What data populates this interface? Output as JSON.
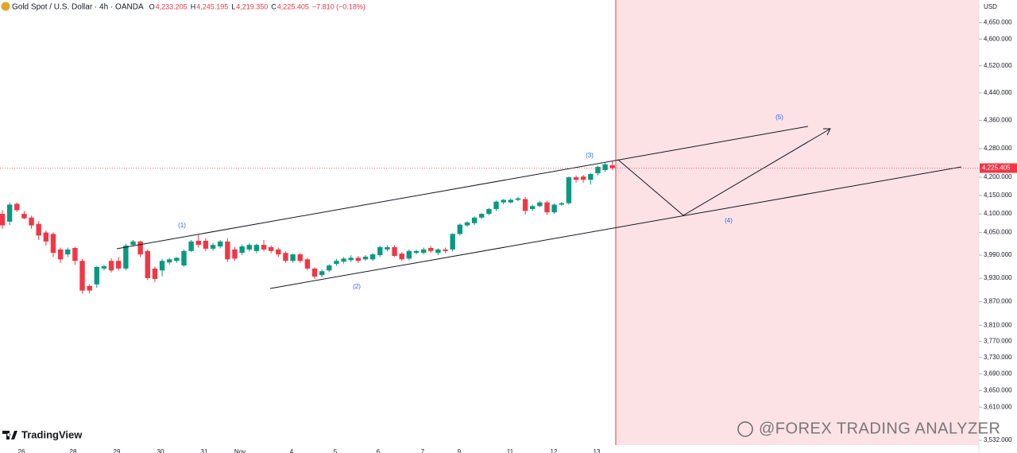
{
  "chart_data": {
    "type": "candlestick",
    "title": "Gold Spot / U.S. Dollar · 4h · OANDA",
    "ohlc_header": [
      {
        "key": "O",
        "label": "4,233.205"
      },
      {
        "key": "H",
        "label": "4,245.195"
      },
      {
        "key": "L",
        "label": "4,219.350"
      },
      {
        "key": "C",
        "label": "4,225.405"
      }
    ],
    "change": "−7.810 (−0.18%)",
    "currency": "USD",
    "log_scale": true,
    "up_color": "#089981",
    "down_color": "#f23645",
    "ylim": [
      3521,
      4720
    ],
    "yticks": [
      {
        "value": 4650,
        "label": "4,650.000"
      },
      {
        "value": 4600,
        "label": "4,600.000"
      },
      {
        "value": 4520,
        "label": "4,520.000"
      },
      {
        "value": 4440,
        "label": "4,440.000"
      },
      {
        "value": 4360,
        "label": "4,360.000"
      },
      {
        "value": 4280,
        "label": "4,280.000"
      },
      {
        "value": 4200,
        "label": "4,200.000"
      },
      {
        "value": 4150,
        "label": "4,150.000"
      },
      {
        "value": 4100,
        "label": "4,100.000"
      },
      {
        "value": 4050,
        "label": "4,050.000"
      },
      {
        "value": 3990,
        "label": "3,990.000"
      },
      {
        "value": 3930,
        "label": "3,930.000"
      },
      {
        "value": 3870,
        "label": "3,870.000"
      },
      {
        "value": 3810,
        "label": "3,810.000"
      },
      {
        "value": 3770,
        "label": "3,770.000"
      },
      {
        "value": 3730,
        "label": "3,730.000"
      },
      {
        "value": 3690,
        "label": "3,690.000"
      },
      {
        "value": 3650,
        "label": "3,650.000"
      },
      {
        "value": 3610,
        "label": "3,610.000"
      },
      {
        "value": 3532,
        "label": "3,532.000"
      }
    ],
    "last_price": {
      "value": 4225.405,
      "label": "4,225.405"
    },
    "x_labels": [
      "26",
      "28",
      "29",
      "30",
      "31",
      "Nov",
      "4",
      "5",
      "6",
      "7",
      "9",
      "11",
      "12",
      "13"
    ],
    "ohlc": [
      [
        4100,
        4110,
        4060,
        4069
      ],
      [
        4079,
        4131,
        4070,
        4125
      ],
      [
        4127,
        4131,
        4105,
        4110
      ],
      [
        4100,
        4108,
        4085,
        4088
      ],
      [
        4090,
        4095,
        4060,
        4069
      ],
      [
        4073,
        4080,
        4030,
        4042
      ],
      [
        4050,
        4055,
        4015,
        4026
      ],
      [
        4046,
        4050,
        3985,
        3996
      ],
      [
        4005,
        4010,
        3970,
        3979
      ],
      [
        3992,
        4010,
        3985,
        4005
      ],
      [
        4009,
        4012,
        3965,
        3975
      ],
      [
        3975,
        3980,
        3890,
        3898
      ],
      [
        3910,
        3914,
        3890,
        3898
      ],
      [
        3914,
        3962,
        3905,
        3959
      ],
      [
        3955,
        3965,
        3950,
        3961
      ],
      [
        3975,
        3982,
        3945,
        3950
      ],
      [
        3975,
        3985,
        3950,
        3955
      ],
      [
        3955,
        4020,
        3950,
        4015
      ],
      [
        4017,
        4030,
        4015,
        4026
      ],
      [
        4026,
        4028,
        3985,
        3992
      ],
      [
        4001,
        4005,
        3925,
        3930
      ],
      [
        3955,
        3960,
        3920,
        3928
      ],
      [
        3950,
        3980,
        3935,
        3975
      ],
      [
        3971,
        3983,
        3965,
        3979
      ],
      [
        3975,
        3985,
        3970,
        3983
      ],
      [
        3963,
        4005,
        3960,
        4001
      ],
      [
        4001,
        4030,
        3998,
        4026
      ],
      [
        4028,
        4045,
        4010,
        4017
      ],
      [
        4028,
        4035,
        4000,
        4007
      ],
      [
        4007,
        4022,
        4002,
        4017
      ],
      [
        4013,
        4030,
        4008,
        4026
      ],
      [
        4026,
        4035,
        3972,
        3979
      ],
      [
        4005,
        4012,
        3975,
        3981
      ],
      [
        3996,
        4018,
        3990,
        4013
      ],
      [
        4005,
        4022,
        4000,
        4017
      ],
      [
        4001,
        4020,
        3995,
        4017
      ],
      [
        4017,
        4030,
        4000,
        4005
      ],
      [
        4011,
        4016,
        3995,
        4001
      ],
      [
        4005,
        4010,
        3985,
        3992
      ],
      [
        3996,
        4000,
        3970,
        3975
      ],
      [
        3975,
        3994,
        3970,
        3992
      ],
      [
        3992,
        3996,
        3970,
        3975
      ],
      [
        3979,
        3983,
        3950,
        3955
      ],
      [
        3955,
        3958,
        3928,
        3934
      ],
      [
        3938,
        3952,
        3932,
        3948
      ],
      [
        3950,
        3966,
        3945,
        3963
      ],
      [
        3967,
        3980,
        3962,
        3975
      ],
      [
        3973,
        3985,
        3968,
        3981
      ],
      [
        3977,
        3990,
        3972,
        3983
      ],
      [
        3983,
        3988,
        3970,
        3975
      ],
      [
        3979,
        3990,
        3975,
        3986
      ],
      [
        3979,
        3996,
        3975,
        3992
      ],
      [
        3990,
        4015,
        3985,
        4011
      ],
      [
        4005,
        4016,
        4000,
        4011
      ],
      [
        4011,
        4016,
        3985,
        3988
      ],
      [
        3994,
        3998,
        3975,
        3979
      ],
      [
        3981,
        4005,
        3977,
        4001
      ],
      [
        3996,
        4004,
        3992,
        4001
      ],
      [
        3996,
        4010,
        3992,
        4005
      ],
      [
        4009,
        4014,
        3996,
        4001
      ],
      [
        3996,
        4008,
        3990,
        4005
      ],
      [
        4005,
        4010,
        3995,
        4001
      ],
      [
        4005,
        4048,
        4000,
        4046
      ],
      [
        4046,
        4074,
        4042,
        4071
      ],
      [
        4069,
        4080,
        4065,
        4077
      ],
      [
        4075,
        4093,
        4070,
        4090
      ],
      [
        4090,
        4102,
        4086,
        4100
      ],
      [
        4100,
        4116,
        4096,
        4113
      ],
      [
        4113,
        4136,
        4108,
        4133
      ],
      [
        4131,
        4140,
        4126,
        4138
      ],
      [
        4131,
        4142,
        4128,
        4138
      ],
      [
        4138,
        4146,
        4134,
        4142
      ],
      [
        4140,
        4146,
        4098,
        4108
      ],
      [
        4113,
        4125,
        4108,
        4121
      ],
      [
        4121,
        4135,
        4118,
        4131
      ],
      [
        4131,
        4136,
        4098,
        4104
      ],
      [
        4104,
        4128,
        4100,
        4125
      ],
      [
        4125,
        4132,
        4122,
        4129
      ],
      [
        4129,
        4202,
        4125,
        4200
      ],
      [
        4200,
        4205,
        4185,
        4193
      ],
      [
        4202,
        4206,
        4185,
        4193
      ],
      [
        4193,
        4212,
        4180,
        4209
      ],
      [
        4211,
        4232,
        4205,
        4229
      ],
      [
        4220,
        4240,
        4215,
        4236
      ],
      [
        4233.205,
        4245.195,
        4219.35,
        4225.405
      ]
    ],
    "wave_labels": [
      "(1)",
      "(2)",
      "(3)",
      "(4)",
      "(5)"
    ],
    "watermark": "@FOREX TRADING ANALYZER",
    "brand": "TradingView"
  }
}
